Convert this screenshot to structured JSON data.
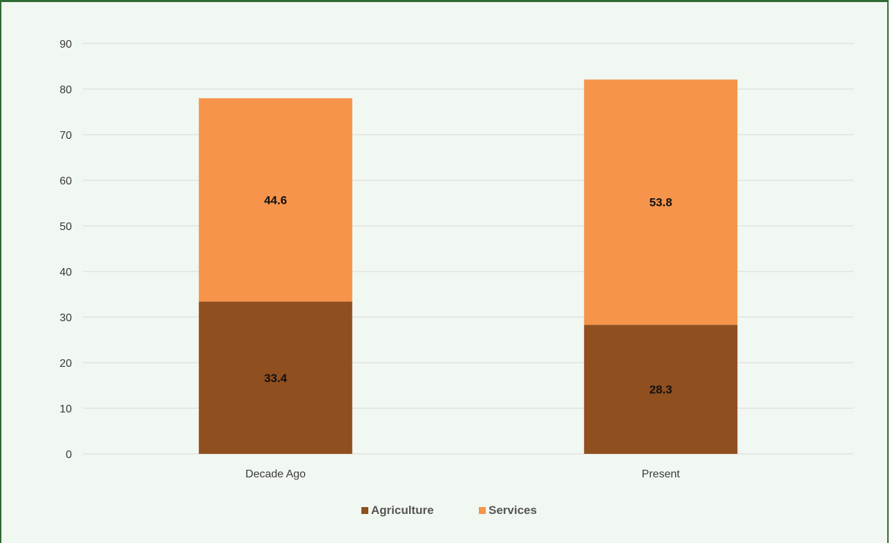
{
  "chart_data": {
    "type": "bar",
    "stacked": true,
    "categories": [
      "Decade Ago",
      "Present"
    ],
    "series": [
      {
        "name": "Agriculture",
        "values": [
          33.4,
          28.3
        ],
        "color": "#8f4f1f"
      },
      {
        "name": "Services",
        "values": [
          44.6,
          53.8
        ],
        "color": "#f5944a"
      }
    ],
    "ylim": [
      0,
      90
    ],
    "yticks": [
      0,
      10,
      20,
      30,
      40,
      50,
      60,
      70,
      80,
      90
    ],
    "grid": true,
    "legend_position": "bottom",
    "data_labels": true
  },
  "colors": {
    "background": "#f1f7f1",
    "border": "#2e6b32",
    "grid": "#d9d9d9"
  }
}
